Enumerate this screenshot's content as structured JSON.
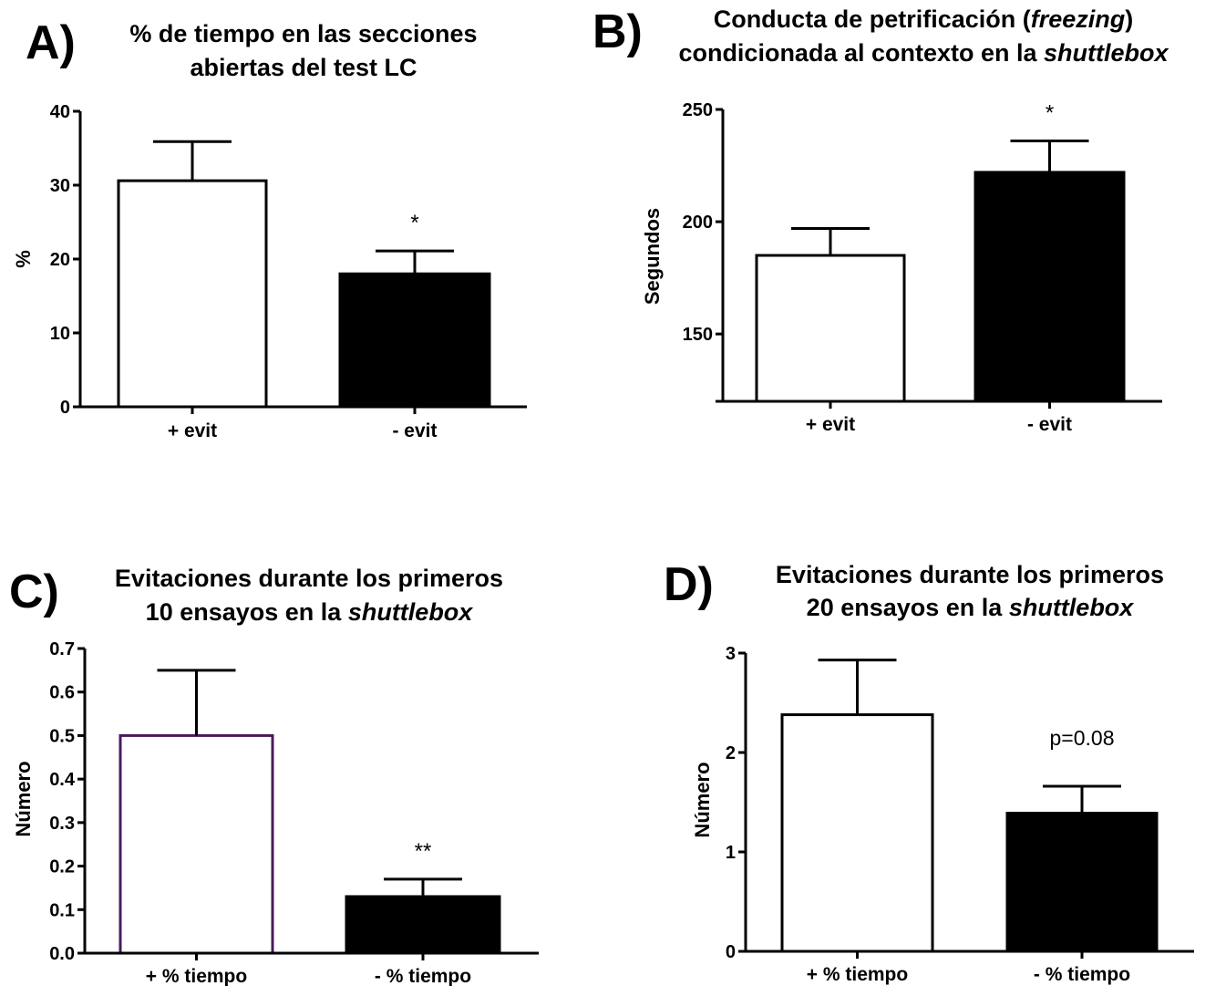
{
  "chart_data": [
    {
      "panel": "A)",
      "type": "bar",
      "title": "% de tiempo en las secciones abiertas del test LC",
      "title_lines": [
        [
          "% de tiempo en las secciones"
        ],
        [
          "abiertas del test LC"
        ]
      ],
      "ylabel": "%",
      "xlabel": "",
      "categories": [
        "+ evit",
        "- evit"
      ],
      "values": [
        30.6,
        18.0
      ],
      "errors": [
        5.3,
        3.1
      ],
      "annotations": [
        "",
        "*"
      ],
      "ylim": [
        0,
        40
      ],
      "yticks": [
        0,
        10,
        20,
        30,
        40
      ],
      "tick_labels": [
        "0",
        "10",
        "20",
        "30",
        "40"
      ],
      "bar_fills": [
        "#ffffff",
        "#000000"
      ],
      "bar_strokes": [
        "#000000",
        "#000000"
      ]
    },
    {
      "panel": "B)",
      "type": "bar",
      "title": "Conducta de petrificación (freezing) condicionada al contexto en la shuttlebox",
      "title_lines": [
        [
          "Conducta de petrificación (",
          "freezing",
          ")"
        ],
        [
          "condicionada al contexto en la ",
          "shuttlebox"
        ]
      ],
      "ylabel": "Segundos",
      "xlabel": "",
      "categories": [
        "+ evit",
        "- evit"
      ],
      "values": [
        185,
        222
      ],
      "errors": [
        12,
        14
      ],
      "annotations": [
        "",
        "*"
      ],
      "ylim": [
        120,
        250
      ],
      "yticks": [
        150,
        200,
        250
      ],
      "tick_labels": [
        "150",
        "200",
        "250"
      ],
      "bar_fills": [
        "#ffffff",
        "#000000"
      ],
      "bar_strokes": [
        "#000000",
        "#000000"
      ]
    },
    {
      "panel": "C)",
      "type": "bar",
      "title": "Evitaciones durante los primeros 10 ensayos en la shuttlebox",
      "title_lines": [
        [
          "Evitaciones durante los primeros"
        ],
        [
          "10 ensayos en la ",
          "shuttlebox"
        ]
      ],
      "ylabel": "Número",
      "xlabel": "",
      "categories": [
        "+ % tiempo",
        "- % tiempo"
      ],
      "values": [
        0.5,
        0.13
      ],
      "errors": [
        0.15,
        0.04
      ],
      "annotations": [
        "",
        "**"
      ],
      "ylim": [
        0,
        0.7
      ],
      "yticks": [
        0,
        0.1,
        0.2,
        0.3,
        0.4,
        0.5,
        0.6,
        0.7
      ],
      "tick_labels": [
        "0.0",
        "0.1",
        "0.2",
        "0.3",
        "0.4",
        "0.5",
        "0.6",
        "0.7"
      ],
      "bar_fills": [
        "#ffffff",
        "#000000"
      ],
      "bar_strokes": [
        "#4b1a5e",
        "#000000"
      ]
    },
    {
      "panel": "D)",
      "type": "bar",
      "title": "Evitaciones durante los primeros 20 ensayos en la shuttlebox",
      "title_lines": [
        [
          "Evitaciones durante los primeros"
        ],
        [
          "20 ensayos en la ",
          "shuttlebox"
        ]
      ],
      "ylabel": "Número",
      "xlabel": "",
      "categories": [
        "+ % tiempo",
        "- % tiempo"
      ],
      "values": [
        2.38,
        1.39
      ],
      "errors": [
        0.55,
        0.27
      ],
      "annotations": [
        "",
        "p=0.08"
      ],
      "ylim": [
        0,
        3
      ],
      "yticks": [
        0,
        1,
        2,
        3
      ],
      "tick_labels": [
        "0",
        "1",
        "2",
        "3"
      ],
      "bar_fills": [
        "#ffffff",
        "#000000"
      ],
      "bar_strokes": [
        "#000000",
        "#000000"
      ]
    }
  ]
}
